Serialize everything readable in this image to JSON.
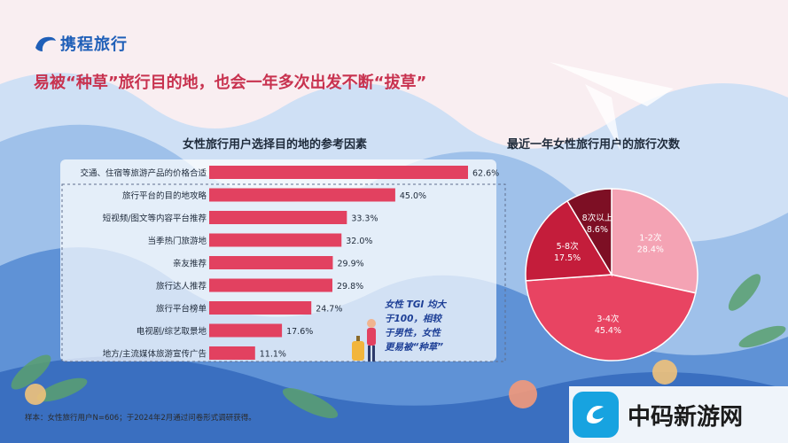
{
  "brand": {
    "name": "携程旅行"
  },
  "headline": "易被“种草”旅行目的地，也会一年多次出发不断“拔草”",
  "chart_data": [
    {
      "type": "bar",
      "orientation": "horizontal",
      "title": "女性旅行用户选择目的地的参考因素",
      "categories": [
        "交通、住宿等旅游产品的价格合适",
        "旅行平台的目的地攻略",
        "短视频/图文等内容平台推荐",
        "当季热门旅游地",
        "亲友推荐",
        "旅行达人推荐",
        "旅行平台榜单",
        "电视剧/综艺取景地",
        "地方/主流媒体旅游宣传广告"
      ],
      "values": [
        62.6,
        45.0,
        33.3,
        32.0,
        29.9,
        29.8,
        24.7,
        17.6,
        11.1
      ],
      "value_labels": [
        "62.6%",
        "45.0%",
        "33.3%",
        "32.0%",
        "29.9%",
        "29.8%",
        "24.7%",
        "17.6%",
        "11.1%"
      ],
      "unit": "%",
      "bar_color": "#e24160"
    },
    {
      "type": "pie",
      "title": "最近一年女性旅行用户的旅行次数",
      "labels": [
        "1-2次",
        "3-4次",
        "5-8次",
        "8次以上"
      ],
      "values": [
        28.4,
        45.4,
        17.5,
        8.6
      ],
      "value_labels": [
        "28.4%",
        "45.4%",
        "17.5%",
        "8.6%"
      ],
      "colors": [
        "#f4a3b4",
        "#e84462",
        "#c41d3b",
        "#7d0f24"
      ]
    }
  ],
  "callout": {
    "line1": "女性 TGI 均大",
    "line2": "于100，相较",
    "line3": "于男性，女性",
    "line4": "更易被“种草”"
  },
  "footnote": "样本：女性旅行用户N=606；于2024年2月通过问卷形式调研获得。",
  "watermark": {
    "site": "中码新游网"
  }
}
